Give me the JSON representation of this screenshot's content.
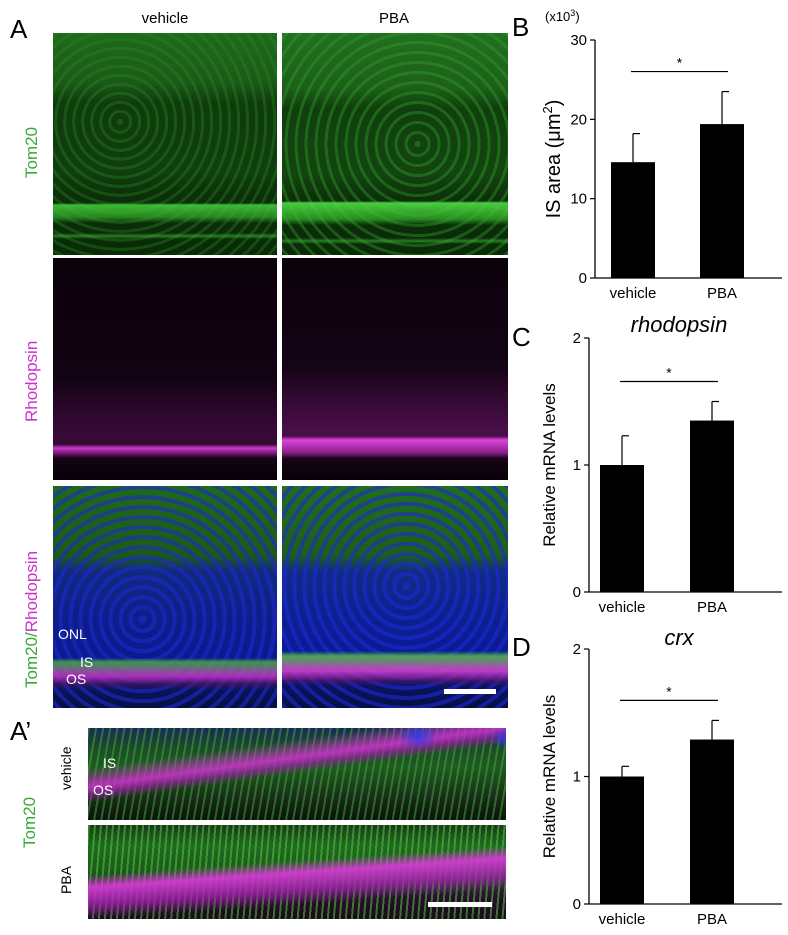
{
  "panels": {
    "A": {
      "letter": "A",
      "columns": [
        "vehicle",
        "PBA"
      ],
      "rows": [
        {
          "label": "Tom20",
          "label_color": "#3aa83a"
        },
        {
          "label": "Rhodopsin",
          "label_color": "#cc33cc"
        },
        {
          "label_part1": "Tom20",
          "label_sep": "/",
          "label_part2": "Rhodopsin",
          "color1": "#3aa83a",
          "color2": "#cc33cc"
        }
      ],
      "layer_tags": [
        "ONL",
        "IS",
        "OS"
      ]
    },
    "A_prime": {
      "letter": "A’",
      "row_label": "Tom20",
      "row_label_color": "#3aa83a",
      "sub_labels": [
        "vehicle",
        "PBA"
      ],
      "layer_tags": [
        "IS",
        "OS"
      ]
    }
  },
  "chart_data": [
    {
      "panel": "B",
      "type": "bar",
      "categories": [
        "vehicle",
        "PBA"
      ],
      "values": [
        14.6,
        19.4
      ],
      "errors": [
        3.6,
        4.1
      ],
      "ylabel_main": "IS area (μm",
      "ylabel_sup": "2",
      "ylabel_end": ")",
      "multiplier": "(x10",
      "multiplier_sup": "3",
      "multiplier_end": ")",
      "ylim": [
        0,
        30
      ],
      "yticks": [
        "0",
        "10",
        "20",
        "30"
      ],
      "significance": "*",
      "title": ""
    },
    {
      "panel": "C",
      "type": "bar",
      "categories": [
        "vehicle",
        "PBA"
      ],
      "values": [
        1.0,
        1.35
      ],
      "errors": [
        0.23,
        0.15
      ],
      "ylabel": "Relative mRNA levels",
      "ylim": [
        0,
        2
      ],
      "yticks": [
        "0",
        "1",
        "2"
      ],
      "significance": "*",
      "title": "rhodopsin"
    },
    {
      "panel": "D",
      "type": "bar",
      "categories": [
        "vehicle",
        "PBA"
      ],
      "values": [
        1.0,
        1.29
      ],
      "errors": [
        0.08,
        0.15
      ],
      "ylabel": "Relative mRNA levels",
      "ylim": [
        0,
        2
      ],
      "yticks": [
        "0",
        "1",
        "2"
      ],
      "significance": "*",
      "title": "crx"
    }
  ]
}
